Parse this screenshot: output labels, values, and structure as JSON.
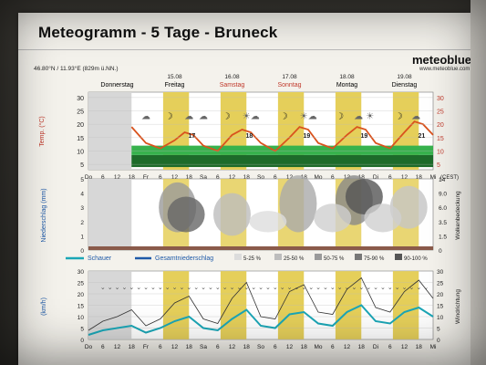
{
  "page": {
    "title": "Meteogramm - 5 Tage - Bruneck",
    "brand": "meteoblue",
    "brand_url": "www.meteoblue.com",
    "coords": "46.80°N / 11.93°E (829m ü.NN.)"
  },
  "days": [
    {
      "name": "Donnerstag",
      "date": "",
      "color": "#000000"
    },
    {
      "name": "Freitag",
      "date": "15.08",
      "color": "#000000"
    },
    {
      "name": "Samstag",
      "date": "16.08",
      "color": "#c0392b"
    },
    {
      "name": "Sonntag",
      "date": "17.08",
      "color": "#c0392b"
    },
    {
      "name": "Montag",
      "date": "18.08",
      "color": "#000000"
    },
    {
      "name": "Dienstag",
      "date": "19.08",
      "color": "#000000"
    }
  ],
  "time_axis": {
    "labels": [
      "Do",
      "6",
      "12",
      "18",
      "Fr",
      "6",
      "12",
      "18",
      "Sa",
      "6",
      "12",
      "18",
      "So",
      "6",
      "12",
      "18",
      "Mo",
      "6",
      "12",
      "18",
      "Di",
      "6",
      "12",
      "18",
      "Mi"
    ],
    "unit": "(CEST)"
  },
  "temp_panel": {
    "ylabel": "Temp. (°C)",
    "ticks": [
      "30",
      "25",
      "20",
      "15",
      "10",
      "5"
    ],
    "tick_values": [
      30,
      25,
      20,
      15,
      10,
      5
    ],
    "daily_max": [
      "",
      "17",
      "18",
      "19",
      "19",
      "21"
    ],
    "daily_min": [
      "",
      "",
      "",
      "",
      "",
      ""
    ],
    "right_ticks": [
      "30",
      "25",
      "20",
      "15",
      "10",
      "5"
    ],
    "temperature_series": [
      {
        "x": 3,
        "y": 19
      },
      {
        "x": 3.5,
        "y": 16
      },
      {
        "x": 4,
        "y": 13
      },
      {
        "x": 5,
        "y": 11
      },
      {
        "x": 6,
        "y": 14
      },
      {
        "x": 6.7,
        "y": 17
      },
      {
        "x": 7.3,
        "y": 16
      },
      {
        "x": 8,
        "y": 12
      },
      {
        "x": 9,
        "y": 10
      },
      {
        "x": 10,
        "y": 16
      },
      {
        "x": 10.7,
        "y": 18
      },
      {
        "x": 11.3,
        "y": 17
      },
      {
        "x": 12,
        "y": 13
      },
      {
        "x": 13,
        "y": 10
      },
      {
        "x": 14,
        "y": 15
      },
      {
        "x": 14.7,
        "y": 19
      },
      {
        "x": 15.3,
        "y": 18
      },
      {
        "x": 16,
        "y": 13
      },
      {
        "x": 17,
        "y": 11
      },
      {
        "x": 18,
        "y": 16
      },
      {
        "x": 18.7,
        "y": 19
      },
      {
        "x": 19.3,
        "y": 18
      },
      {
        "x": 20,
        "y": 13
      },
      {
        "x": 21,
        "y": 11
      },
      {
        "x": 22,
        "y": 17
      },
      {
        "x": 22.7,
        "y": 21
      },
      {
        "x": 23.3,
        "y": 20
      },
      {
        "x": 24,
        "y": 16
      }
    ]
  },
  "precip_panel": {
    "ylabel": "Niederschlag (mm)",
    "left_ticks": [
      "5",
      "4",
      "3",
      "2",
      "1",
      "0"
    ],
    "right_ticks": [
      "14",
      "9.0",
      "6.0",
      "3.5",
      "1.5",
      "0"
    ],
    "right_label": "Wolkenbedeckung",
    "legend": {
      "schauer": "Schauer",
      "gesamt": "Gesamtniederschlag",
      "bins": [
        "5-25 %",
        "25-50 %",
        "50-75 %",
        "75-90 %",
        "90-100 %"
      ],
      "bin_colors": [
        "#dcdcdc",
        "#bdbdbd",
        "#9a9a9a",
        "#777777",
        "#555555"
      ]
    }
  },
  "wind_panel": {
    "ylabel": "(km/h)",
    "ticks": [
      "30",
      "25",
      "20",
      "15",
      "10",
      "5",
      "0"
    ],
    "right_ticks": [
      "30",
      "25",
      "20",
      "15",
      "10",
      "5",
      "0"
    ],
    "right_label": "Windrichtung",
    "wind_speed": [
      {
        "x": 0,
        "y": 2
      },
      {
        "x": 1,
        "y": 4
      },
      {
        "x": 2,
        "y": 5
      },
      {
        "x": 3,
        "y": 6
      },
      {
        "x": 4,
        "y": 3
      },
      {
        "x": 5,
        "y": 5
      },
      {
        "x": 6,
        "y": 8
      },
      {
        "x": 7,
        "y": 10
      },
      {
        "x": 8,
        "y": 5
      },
      {
        "x": 9,
        "y": 4
      },
      {
        "x": 10,
        "y": 9
      },
      {
        "x": 11,
        "y": 13
      },
      {
        "x": 12,
        "y": 6
      },
      {
        "x": 13,
        "y": 5
      },
      {
        "x": 14,
        "y": 11
      },
      {
        "x": 15,
        "y": 12
      },
      {
        "x": 16,
        "y": 7
      },
      {
        "x": 17,
        "y": 6
      },
      {
        "x": 18,
        "y": 12
      },
      {
        "x": 19,
        "y": 15
      },
      {
        "x": 20,
        "y": 8
      },
      {
        "x": 21,
        "y": 7
      },
      {
        "x": 22,
        "y": 12
      },
      {
        "x": 23,
        "y": 14
      },
      {
        "x": 24,
        "y": 10
      }
    ],
    "gusts": [
      {
        "x": 0,
        "y": 4
      },
      {
        "x": 1,
        "y": 8
      },
      {
        "x": 2,
        "y": 10
      },
      {
        "x": 3,
        "y": 13
      },
      {
        "x": 4,
        "y": 6
      },
      {
        "x": 5,
        "y": 9
      },
      {
        "x": 6,
        "y": 16
      },
      {
        "x": 7,
        "y": 19
      },
      {
        "x": 8,
        "y": 9
      },
      {
        "x": 9,
        "y": 7
      },
      {
        "x": 10,
        "y": 18
      },
      {
        "x": 11,
        "y": 25
      },
      {
        "x": 12,
        "y": 10
      },
      {
        "x": 13,
        "y": 9
      },
      {
        "x": 14,
        "y": 21
      },
      {
        "x": 15,
        "y": 24
      },
      {
        "x": 16,
        "y": 12
      },
      {
        "x": 17,
        "y": 11
      },
      {
        "x": 18,
        "y": 22
      },
      {
        "x": 19,
        "y": 27
      },
      {
        "x": 20,
        "y": 14
      },
      {
        "x": 21,
        "y": 12
      },
      {
        "x": 22,
        "y": 21
      },
      {
        "x": 23,
        "y": 26
      },
      {
        "x": 24,
        "y": 18
      }
    ]
  },
  "colors": {
    "day_band": "#e5cf5a",
    "night_band": "#ffffff",
    "temp_line": "#d9531e",
    "green_bright": "#37b24d",
    "green_dark": "#1d6b2a",
    "wind_speed": "#1ba6b6",
    "gusts": "#333333",
    "legend_schauer": "#1ba6b6",
    "legend_gesamt": "#1f5aa8"
  }
}
